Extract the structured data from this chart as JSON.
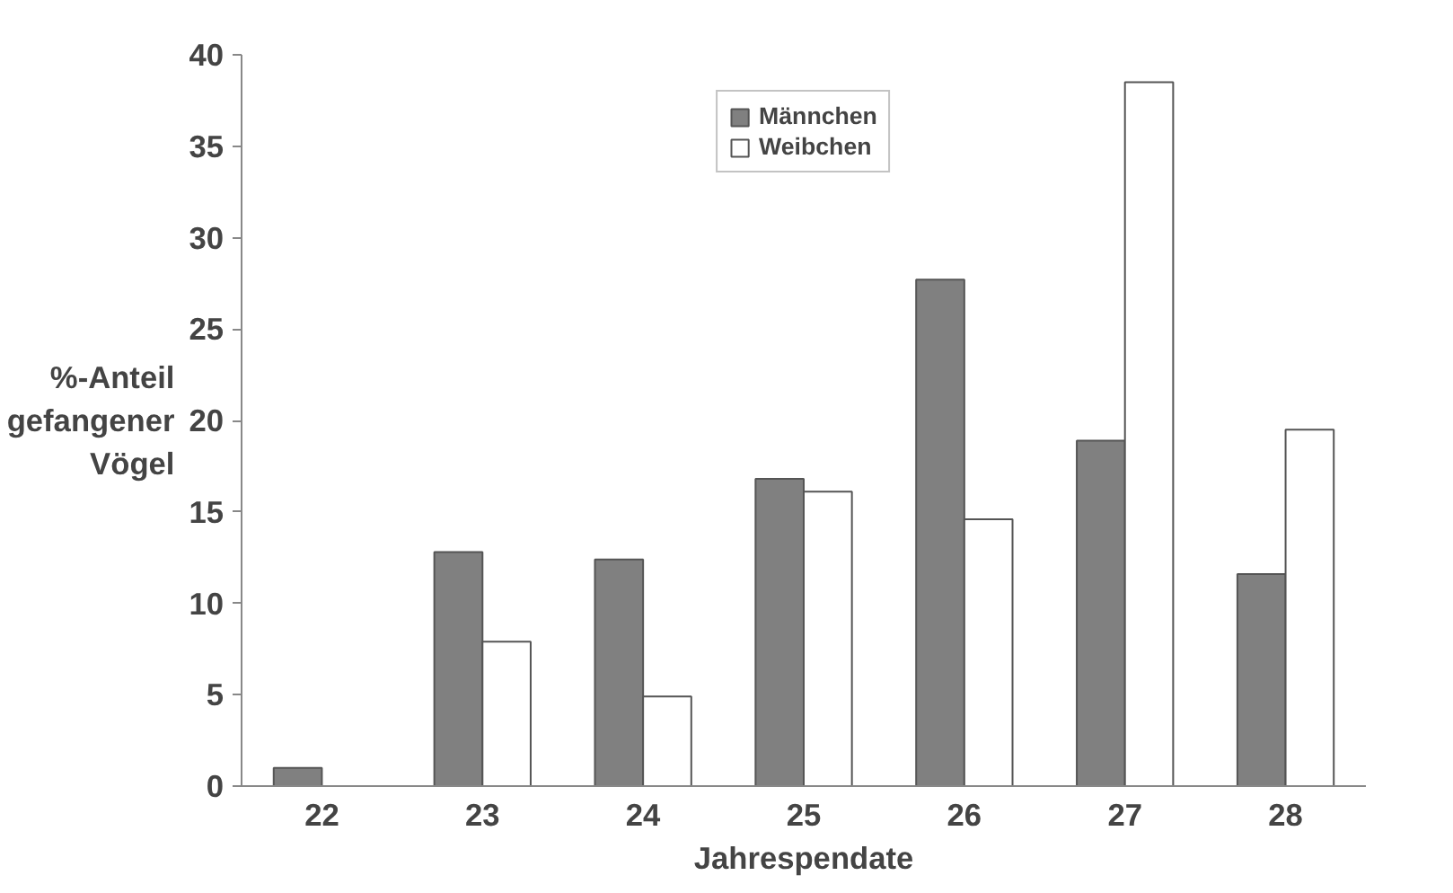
{
  "chart_data": {
    "type": "bar",
    "xlabel": "Jahrespendate",
    "ylabel": "%-Anteil\ngefangener\nVögel",
    "categories": [
      "22",
      "23",
      "24",
      "25",
      "26",
      "27",
      "28"
    ],
    "series": [
      {
        "name": "Männchen",
        "color": "#808080",
        "values": [
          1.0,
          12.8,
          12.4,
          16.8,
          27.7,
          18.9,
          11.6
        ]
      },
      {
        "name": "Weibchen",
        "color": "#ffffff",
        "values": [
          null,
          7.9,
          4.9,
          16.1,
          14.6,
          38.5,
          19.5
        ]
      }
    ],
    "ylim": [
      0,
      40
    ],
    "yticks": [
      0,
      5,
      10,
      15,
      20,
      25,
      30,
      35,
      40
    ],
    "grid": false,
    "legend": "top"
  }
}
